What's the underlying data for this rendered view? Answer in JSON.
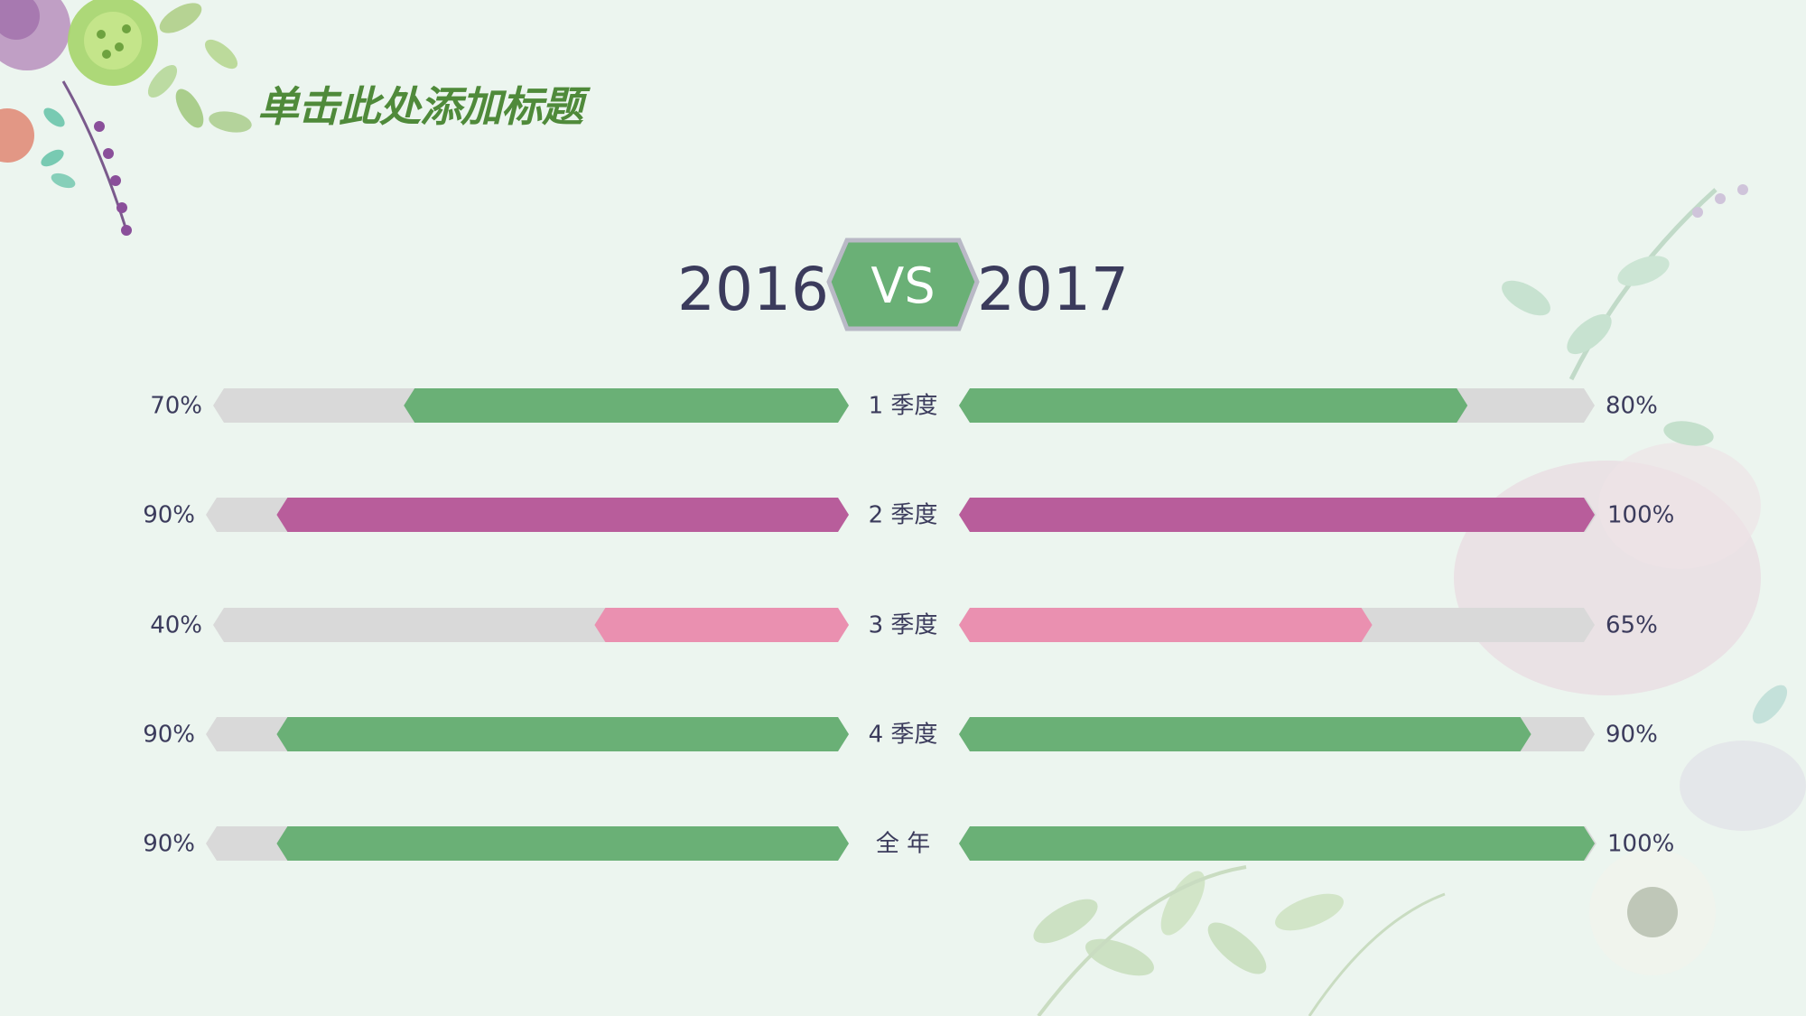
{
  "title": "单击此处添加标题",
  "chart_data": {
    "type": "bar",
    "left_label": "2016",
    "vs_label": "VS",
    "right_label": "2017",
    "categories": [
      "1 季度",
      "2 季度",
      "3 季度",
      "4 季度",
      "全 年"
    ],
    "series": [
      {
        "name": "2016",
        "values": [
          70,
          90,
          40,
          90,
          90
        ]
      },
      {
        "name": "2017",
        "values": [
          80,
          100,
          65,
          90,
          100
        ]
      }
    ],
    "value_labels": {
      "left": [
        "70%",
        "90%",
        "40%",
        "90%",
        "90%"
      ],
      "right": [
        "80%",
        "100%",
        "65%",
        "90%",
        "100%"
      ]
    },
    "row_colors": [
      "#6ab076",
      "#b85d9b",
      "#ea90b0",
      "#6ab076",
      "#6ab076"
    ],
    "track_color": "#d9d9d9",
    "vs_color": "#6ab076"
  }
}
